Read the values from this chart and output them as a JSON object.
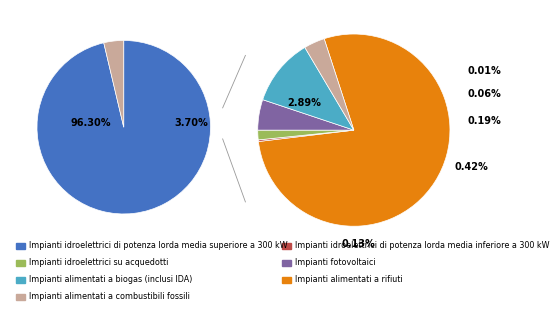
{
  "left_pie": {
    "values": [
      96.3,
      3.7
    ],
    "colors": [
      "#4472C4",
      "#C9A99A"
    ],
    "labels": [
      "96.30%",
      "3.70%"
    ],
    "startangle": 90
  },
  "right_pie": {
    "values": [
      2.89,
      0.01,
      0.06,
      0.19,
      0.42,
      0.13
    ],
    "colors": [
      "#E8820C",
      "#BE4B48",
      "#9BBB59",
      "#8064A2",
      "#4BACC6",
      "#C9A99A"
    ],
    "labels": [
      "2.89%",
      "0.01%",
      "0.06%",
      "0.19%",
      "0.42%",
      "0.13%"
    ],
    "startangle": 108
  },
  "legend_items": [
    {
      "label": "Impianti idroelettrici di potenza lorda media superiore a 300 kW",
      "color": "#4472C4"
    },
    {
      "label": "Impianti idroelettrici di potenza lorda media inferiore a 300 kW",
      "color": "#BE4B48"
    },
    {
      "label": "Impianti idroelettrici su acquedotti",
      "color": "#9BBB59"
    },
    {
      "label": "Impianti fotovoltaici",
      "color": "#8064A2"
    },
    {
      "label": "Impianti alimentati a biogas (inclusi IDA)",
      "color": "#4BACC6"
    },
    {
      "label": "Impianti alimentati a rifiuti",
      "color": "#E8820C"
    },
    {
      "label": "Impianti alimentati a combustibili fossili",
      "color": "#C9A99A"
    }
  ],
  "background_color": "#FFFFFF",
  "label_fontsize": 7.0,
  "legend_fontsize": 5.8
}
